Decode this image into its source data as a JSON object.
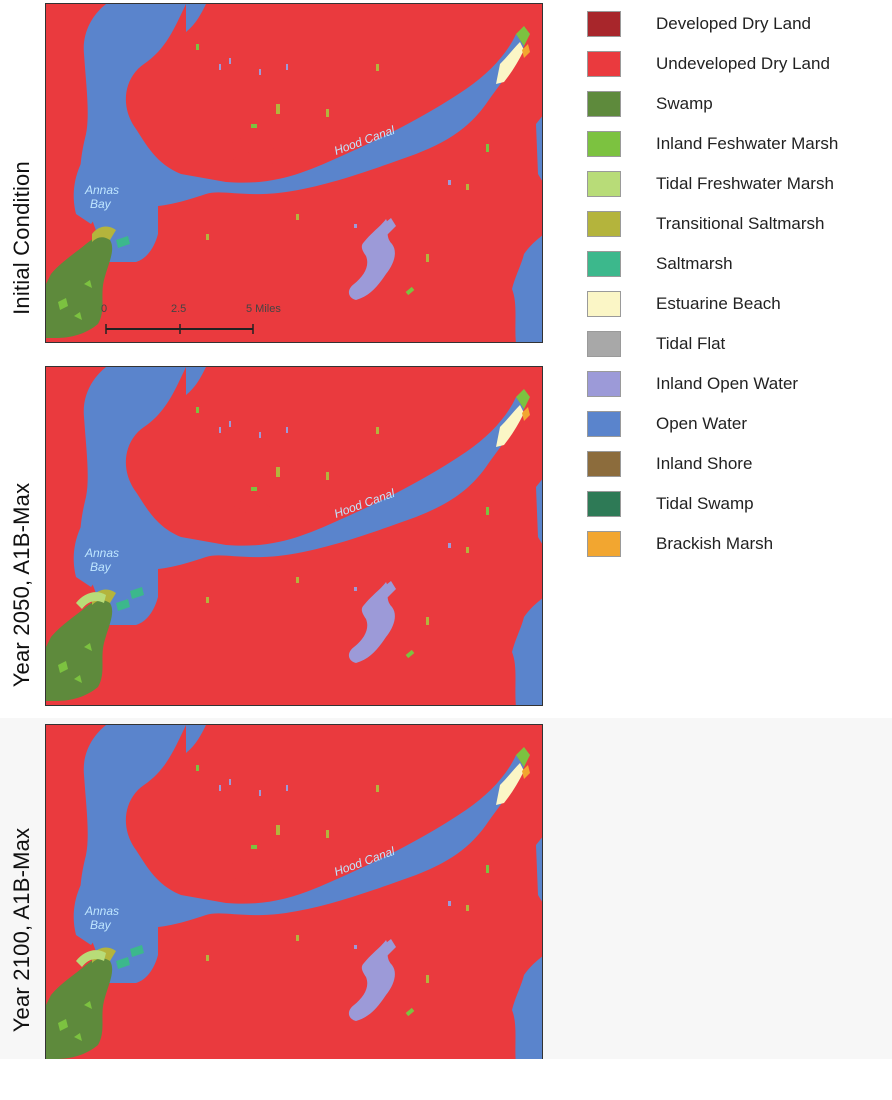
{
  "panels": [
    {
      "label": "Initial Condition",
      "bay_label_1": "Annas",
      "bay_label_2": "Bay",
      "canal_label": "Hood Canal",
      "scale": {
        "tick_0": "0",
        "tick_1": "2.5",
        "tick_2": "5 Miles"
      }
    },
    {
      "label": "Year 2050, A1B-Max",
      "bay_label_1": "Annas",
      "bay_label_2": "Bay",
      "canal_label": "Hood Canal"
    },
    {
      "label": "Year 2100, A1B-Max",
      "bay_label_1": "Annas",
      "bay_label_2": "Bay",
      "canal_label": "Hood Canal"
    }
  ],
  "legend": [
    {
      "label": "Developed Dry Land",
      "color": "#a8262b"
    },
    {
      "label": "Undeveloped Dry Land",
      "color": "#ea3a3e"
    },
    {
      "label": "Swamp",
      "color": "#5e8a3c"
    },
    {
      "label": "Inland Feshwater Marsh",
      "color": "#7cc240"
    },
    {
      "label": "Tidal Freshwater Marsh",
      "color": "#b8dc78"
    },
    {
      "label": "Transitional Saltmarsh",
      "color": "#b4b43c"
    },
    {
      "label": "Saltmarsh",
      "color": "#3cb88c"
    },
    {
      "label": "Estuarine Beach",
      "color": "#fbf6c6"
    },
    {
      "label": "Tidal Flat",
      "color": "#a8a8a8"
    },
    {
      "label": "Inland Open Water",
      "color": "#9c9ad8"
    },
    {
      "label": "Open Water",
      "color": "#5a84cc"
    },
    {
      "label": "Inland Shore",
      "color": "#8c6c3c"
    },
    {
      "label": "Tidal Swamp",
      "color": "#2e7a56"
    },
    {
      "label": "Brackish Marsh",
      "color": "#f2a630"
    }
  ]
}
